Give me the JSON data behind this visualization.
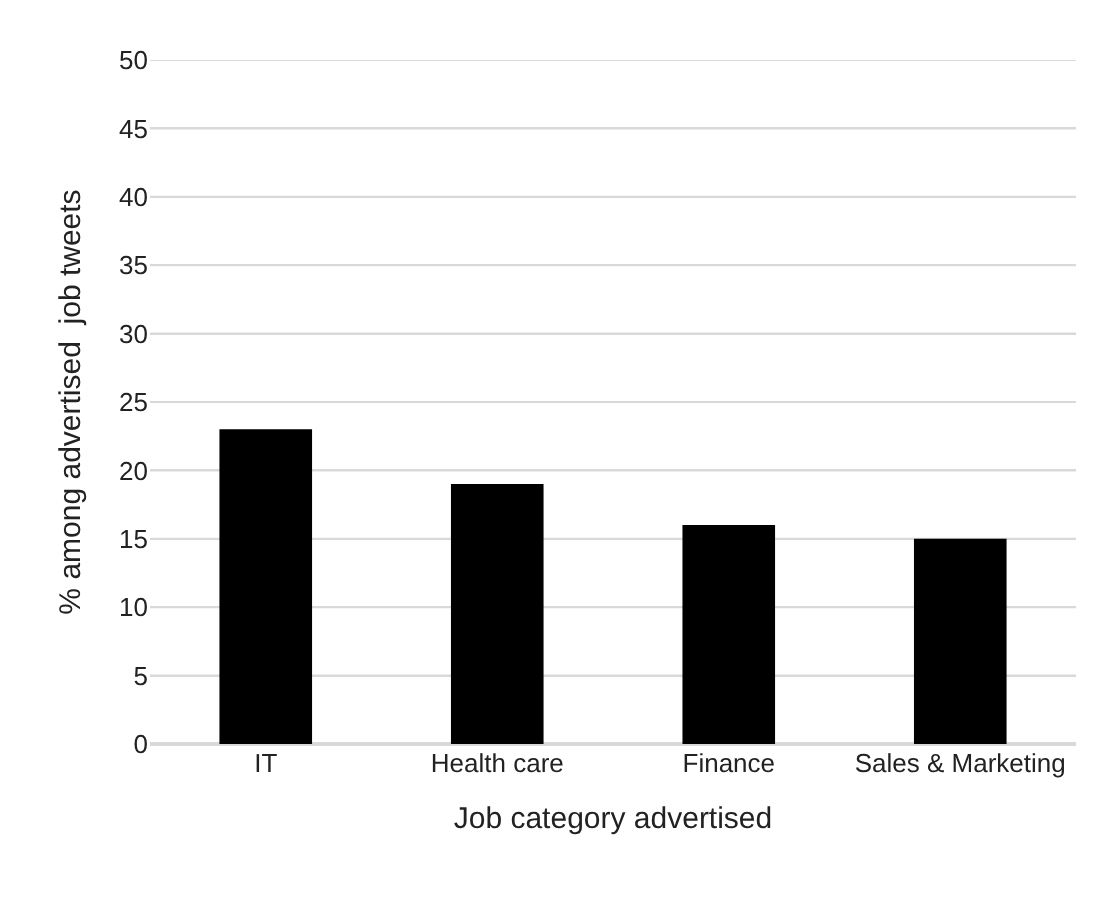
{
  "chart_data": {
    "type": "bar",
    "xlabel": "Job category advertised",
    "ylabel": "% among advertised  job tweets",
    "categories": [
      "IT",
      "Health care",
      "Finance",
      "Sales & Marketing"
    ],
    "values": [
      23,
      19,
      16,
      15
    ],
    "color": "#000000",
    "ylim": [
      0,
      50
    ],
    "yticks": [
      0,
      5,
      10,
      15,
      20,
      25,
      30,
      35,
      40,
      45,
      50
    ],
    "grid": "y"
  }
}
